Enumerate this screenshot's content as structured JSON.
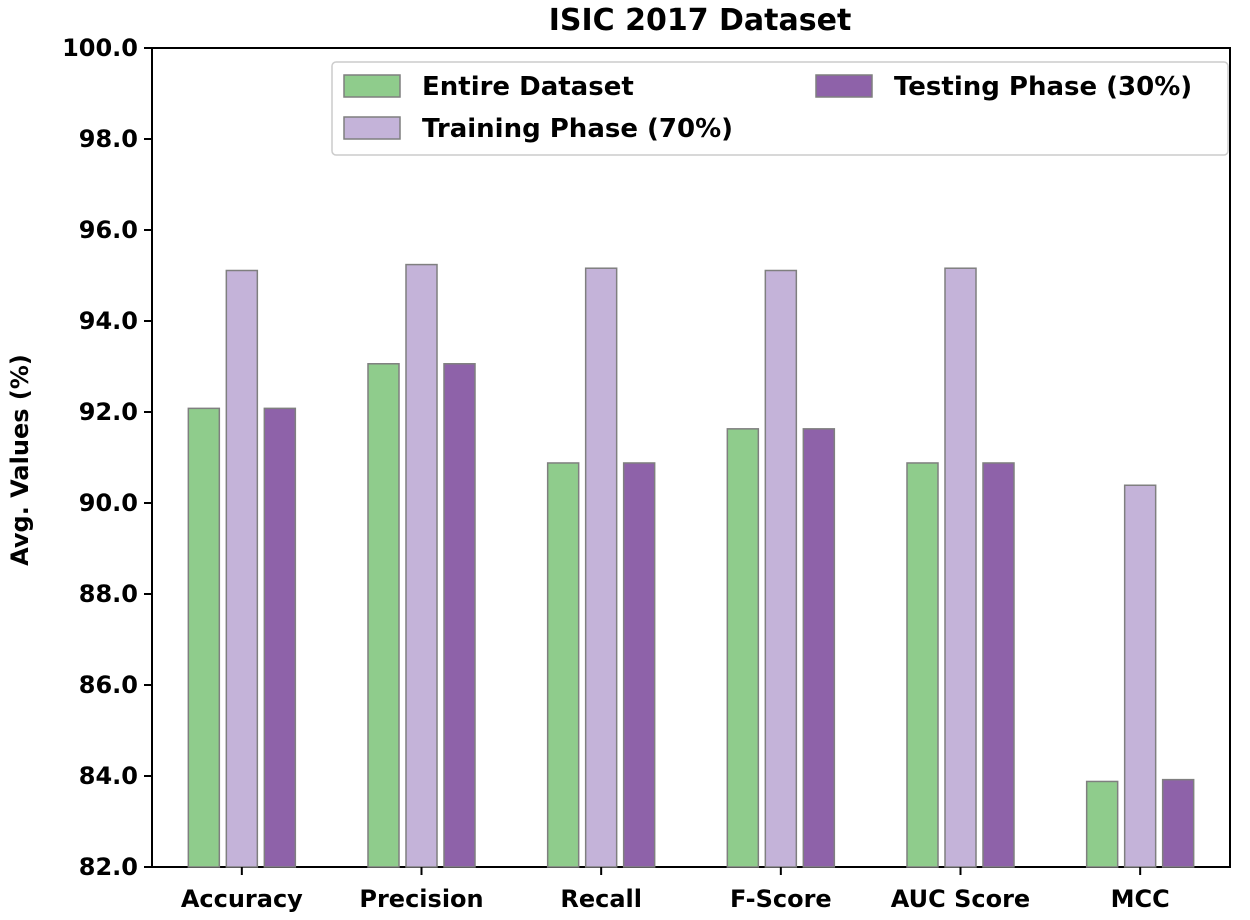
{
  "chart_data": {
    "type": "bar",
    "title": "ISIC 2017 Dataset",
    "xlabel": "",
    "ylabel": "Avg. Values (%)",
    "ylim": [
      82.0,
      100.0
    ],
    "yticks": [
      "82.0",
      "84.0",
      "86.0",
      "88.0",
      "90.0",
      "92.0",
      "94.0",
      "96.0",
      "98.0",
      "100.0"
    ],
    "yticks_values": [
      82,
      84,
      86,
      88,
      90,
      92,
      94,
      96,
      98,
      100
    ],
    "categories": [
      "Accuracy",
      "Precision",
      "Recall",
      "F-Score",
      "AUC Score",
      "MCC"
    ],
    "series": [
      {
        "name": "Entire Dataset",
        "color": "#8fcc8c",
        "values": [
          92.08,
          93.06,
          90.88,
          91.63,
          90.88,
          83.88
        ]
      },
      {
        "name": "Training Phase (70%)",
        "color": "#c4b3d9",
        "values": [
          95.11,
          95.24,
          95.16,
          95.11,
          95.16,
          90.39
        ]
      },
      {
        "name": "Testing Phase (30%)",
        "color": "#8e62a9",
        "values": [
          92.08,
          93.06,
          90.88,
          91.63,
          90.88,
          83.92
        ]
      }
    ],
    "grid": false,
    "legend_position": "top-right"
  }
}
